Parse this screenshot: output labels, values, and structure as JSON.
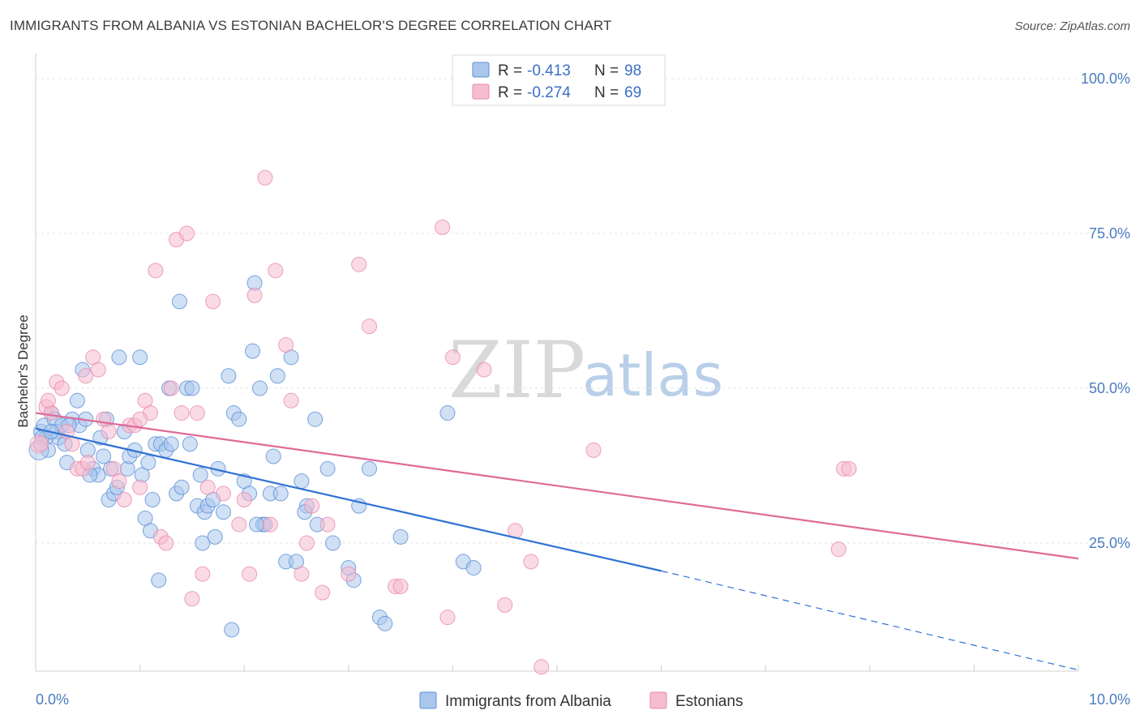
{
  "header": {
    "title": "IMMIGRANTS FROM ALBANIA VS ESTONIAN BACHELOR'S DEGREE CORRELATION CHART",
    "source": "Source: ZipAtlas.com"
  },
  "watermark": {
    "zip": "ZIP",
    "atlas": "atlas"
  },
  "colors": {
    "albania_fill": "#a9c7ec",
    "albania_stroke": "#5b8fd6",
    "albania_line": "#2f72d4",
    "estonian_fill": "#f6bcd0",
    "estonian_stroke": "#e88aab",
    "estonian_line": "#e06a95",
    "axis_text": "#4a7cc0"
  },
  "stats_legend": {
    "albania": {
      "r_label": "R =",
      "r_value": "-0.413",
      "n_label": "N =",
      "n_value": "98"
    },
    "estonian": {
      "r_label": "R =",
      "r_value": "-0.274",
      "n_label": "N =",
      "n_value": "69"
    }
  },
  "bottom_legend": {
    "albania": "Immigrants from Albania",
    "estonian": "Estonians"
  },
  "chart_data": {
    "type": "scatter",
    "title": "IMMIGRANTS FROM ALBANIA VS ESTONIAN BACHELOR'S DEGREE CORRELATION CHART",
    "xlabel": "",
    "ylabel": "Bachelor's Degree",
    "xlim": [
      0,
      10
    ],
    "ylim": [
      0,
      105
    ],
    "x_tick_labels": [
      "0.0%",
      "10.0%"
    ],
    "y_ticks": [
      25,
      50,
      75,
      100
    ],
    "y_tick_labels": [
      "25.0%",
      "50.0%",
      "75.0%",
      "100.0%"
    ],
    "grid": "horizontal dashed",
    "legend_position": "top-center",
    "series": [
      {
        "name": "Immigrants from Albania",
        "trend": {
          "x0": 0,
          "y0": 43.5,
          "x1": 6.0,
          "y1": 20.5,
          "dashed_to_x": 10.0,
          "dashed_to_y": 4.5
        },
        "points": [
          [
            0.05,
            43
          ],
          [
            0.08,
            44
          ],
          [
            0.1,
            42
          ],
          [
            0.12,
            40
          ],
          [
            0.15,
            46
          ],
          [
            0.18,
            45
          ],
          [
            0.2,
            43
          ],
          [
            0.22,
            42
          ],
          [
            0.25,
            44
          ],
          [
            0.3,
            38
          ],
          [
            0.35,
            45
          ],
          [
            0.4,
            48
          ],
          [
            0.42,
            44
          ],
          [
            0.45,
            53
          ],
          [
            0.48,
            45
          ],
          [
            0.5,
            40
          ],
          [
            0.55,
            37
          ],
          [
            0.6,
            36
          ],
          [
            0.62,
            42
          ],
          [
            0.65,
            39
          ],
          [
            0.7,
            32
          ],
          [
            0.72,
            37
          ],
          [
            0.75,
            33
          ],
          [
            0.8,
            55
          ],
          [
            0.85,
            43
          ],
          [
            0.88,
            37
          ],
          [
            0.9,
            39
          ],
          [
            0.95,
            40
          ],
          [
            1.0,
            55
          ],
          [
            1.02,
            36
          ],
          [
            1.05,
            29
          ],
          [
            1.1,
            27
          ],
          [
            1.12,
            32
          ],
          [
            1.15,
            41
          ],
          [
            1.18,
            19
          ],
          [
            1.2,
            41
          ],
          [
            1.25,
            40
          ],
          [
            1.28,
            50
          ],
          [
            1.3,
            41
          ],
          [
            1.35,
            33
          ],
          [
            1.38,
            64
          ],
          [
            1.4,
            34
          ],
          [
            1.45,
            50
          ],
          [
            1.48,
            41
          ],
          [
            1.5,
            50
          ],
          [
            1.55,
            31
          ],
          [
            1.58,
            36
          ],
          [
            1.6,
            25
          ],
          [
            1.62,
            30
          ],
          [
            1.65,
            31
          ],
          [
            1.7,
            32
          ],
          [
            1.72,
            26
          ],
          [
            1.75,
            37
          ],
          [
            1.8,
            30
          ],
          [
            1.85,
            52
          ],
          [
            1.9,
            46
          ],
          [
            1.95,
            45
          ],
          [
            2.0,
            35
          ],
          [
            2.05,
            33
          ],
          [
            2.08,
            56
          ],
          [
            2.1,
            67
          ],
          [
            2.15,
            50
          ],
          [
            2.18,
            28
          ],
          [
            2.2,
            28
          ],
          [
            2.25,
            33
          ],
          [
            2.28,
            39
          ],
          [
            2.32,
            52
          ],
          [
            2.35,
            33
          ],
          [
            2.4,
            22
          ],
          [
            2.45,
            55
          ],
          [
            2.5,
            22
          ],
          [
            2.55,
            35
          ],
          [
            2.6,
            31
          ],
          [
            2.7,
            28
          ],
          [
            2.8,
            37
          ],
          [
            2.85,
            25
          ],
          [
            3.0,
            21
          ],
          [
            3.05,
            19
          ],
          [
            3.1,
            31
          ],
          [
            3.2,
            37
          ],
          [
            3.3,
            13
          ],
          [
            3.35,
            12
          ],
          [
            3.5,
            26
          ],
          [
            3.95,
            46
          ],
          [
            4.1,
            22
          ],
          [
            4.2,
            21
          ],
          [
            0.06,
            42
          ],
          [
            0.15,
            43
          ],
          [
            0.28,
            41
          ],
          [
            0.32,
            44
          ],
          [
            0.52,
            36
          ],
          [
            0.68,
            45
          ],
          [
            0.78,
            34
          ],
          [
            1.08,
            38
          ],
          [
            1.88,
            11
          ],
          [
            2.12,
            28
          ],
          [
            2.58,
            30
          ],
          [
            2.68,
            45
          ]
        ]
      },
      {
        "name": "Estonians",
        "trend": {
          "x0": 0,
          "y0": 46,
          "x1": 10.0,
          "y1": 22.5
        },
        "points": [
          [
            0.05,
            41
          ],
          [
            0.1,
            47
          ],
          [
            0.15,
            46
          ],
          [
            0.2,
            51
          ],
          [
            0.25,
            50
          ],
          [
            0.3,
            43
          ],
          [
            0.35,
            41
          ],
          [
            0.4,
            37
          ],
          [
            0.45,
            37
          ],
          [
            0.5,
            38
          ],
          [
            0.55,
            55
          ],
          [
            0.6,
            53
          ],
          [
            0.65,
            45
          ],
          [
            0.7,
            43
          ],
          [
            0.75,
            37
          ],
          [
            0.8,
            35
          ],
          [
            0.85,
            32
          ],
          [
            0.9,
            44
          ],
          [
            0.95,
            44
          ],
          [
            1.0,
            34
          ],
          [
            1.05,
            48
          ],
          [
            1.1,
            46
          ],
          [
            1.15,
            69
          ],
          [
            1.2,
            26
          ],
          [
            1.25,
            25
          ],
          [
            1.3,
            50
          ],
          [
            1.35,
            74
          ],
          [
            1.4,
            46
          ],
          [
            1.45,
            75
          ],
          [
            1.5,
            16
          ],
          [
            1.55,
            46
          ],
          [
            1.6,
            20
          ],
          [
            1.65,
            34
          ],
          [
            1.7,
            64
          ],
          [
            1.8,
            33
          ],
          [
            1.95,
            28
          ],
          [
            2.0,
            32
          ],
          [
            2.05,
            20
          ],
          [
            2.1,
            65
          ],
          [
            2.2,
            84
          ],
          [
            2.25,
            28
          ],
          [
            2.3,
            69
          ],
          [
            2.4,
            57
          ],
          [
            2.45,
            48
          ],
          [
            2.55,
            20
          ],
          [
            2.6,
            25
          ],
          [
            2.65,
            31
          ],
          [
            2.75,
            17
          ],
          [
            2.8,
            28
          ],
          [
            3.0,
            20
          ],
          [
            3.1,
            70
          ],
          [
            3.2,
            60
          ],
          [
            3.45,
            18
          ],
          [
            3.5,
            18
          ],
          [
            3.9,
            76
          ],
          [
            3.95,
            13
          ],
          [
            4.0,
            55
          ],
          [
            4.3,
            53
          ],
          [
            4.5,
            15
          ],
          [
            4.6,
            27
          ],
          [
            4.75,
            22
          ],
          [
            4.85,
            5
          ],
          [
            5.35,
            40
          ],
          [
            7.7,
            24
          ],
          [
            7.75,
            37
          ],
          [
            7.8,
            37
          ],
          [
            0.12,
            48
          ],
          [
            0.48,
            52
          ],
          [
            1.0,
            45
          ]
        ]
      }
    ]
  }
}
